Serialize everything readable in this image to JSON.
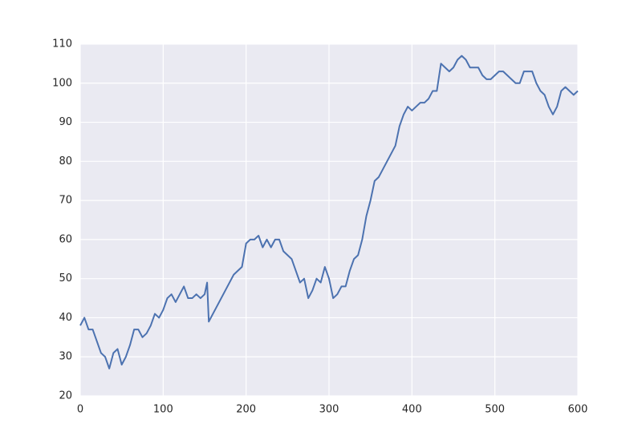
{
  "chart_data": {
    "type": "line",
    "x": [
      0,
      5,
      10,
      15,
      20,
      25,
      30,
      35,
      40,
      45,
      50,
      55,
      60,
      65,
      70,
      75,
      80,
      85,
      90,
      95,
      100,
      105,
      110,
      115,
      120,
      125,
      130,
      135,
      140,
      145,
      150,
      153,
      155,
      160,
      165,
      170,
      175,
      180,
      185,
      190,
      195,
      200,
      205,
      210,
      215,
      220,
      225,
      230,
      235,
      240,
      245,
      250,
      255,
      260,
      265,
      270,
      275,
      280,
      285,
      290,
      295,
      300,
      305,
      310,
      315,
      320,
      325,
      330,
      335,
      340,
      345,
      350,
      355,
      360,
      365,
      370,
      375,
      380,
      385,
      390,
      395,
      400,
      405,
      410,
      415,
      420,
      425,
      430,
      435,
      440,
      445,
      450,
      455,
      460,
      465,
      470,
      475,
      480,
      485,
      490,
      495,
      500,
      505,
      510,
      515,
      520,
      525,
      530,
      535,
      540,
      545,
      550,
      555,
      560,
      565,
      570,
      575,
      580,
      585,
      590,
      595,
      600
    ],
    "series": [
      {
        "color": "#4c72b0",
        "values": [
          38,
          40,
          37,
          37,
          34,
          31,
          30,
          27,
          31,
          32,
          28,
          30,
          33,
          37,
          37,
          35,
          36,
          38,
          41,
          40,
          42,
          45,
          46,
          44,
          46,
          48,
          45,
          45,
          46,
          45,
          46,
          49,
          39,
          41,
          43,
          45,
          47,
          49,
          51,
          52,
          53,
          59,
          60,
          60,
          61,
          58,
          60,
          58,
          60,
          60,
          57,
          56,
          55,
          52,
          49,
          50,
          45,
          47,
          50,
          49,
          53,
          50,
          45,
          46,
          48,
          48,
          52,
          55,
          56,
          60,
          66,
          70,
          75,
          76,
          78,
          80,
          82,
          84,
          89,
          92,
          94,
          93,
          94,
          95,
          95,
          96,
          98,
          98,
          105,
          104,
          103,
          104,
          106,
          107,
          106,
          104,
          104,
          104,
          102,
          101,
          101,
          102,
          103,
          103,
          102,
          101,
          100,
          100,
          103,
          103,
          103,
          100,
          98,
          97,
          94,
          92,
          94,
          98,
          99,
          98,
          97,
          98
        ]
      }
    ],
    "xlim": [
      0,
      600
    ],
    "xticks": [
      0,
      100,
      200,
      300,
      400,
      500,
      600
    ],
    "ylim": [
      20,
      110
    ],
    "yticks": [
      20,
      30,
      40,
      50,
      60,
      70,
      80,
      90,
      100,
      110
    ],
    "grid": true
  }
}
